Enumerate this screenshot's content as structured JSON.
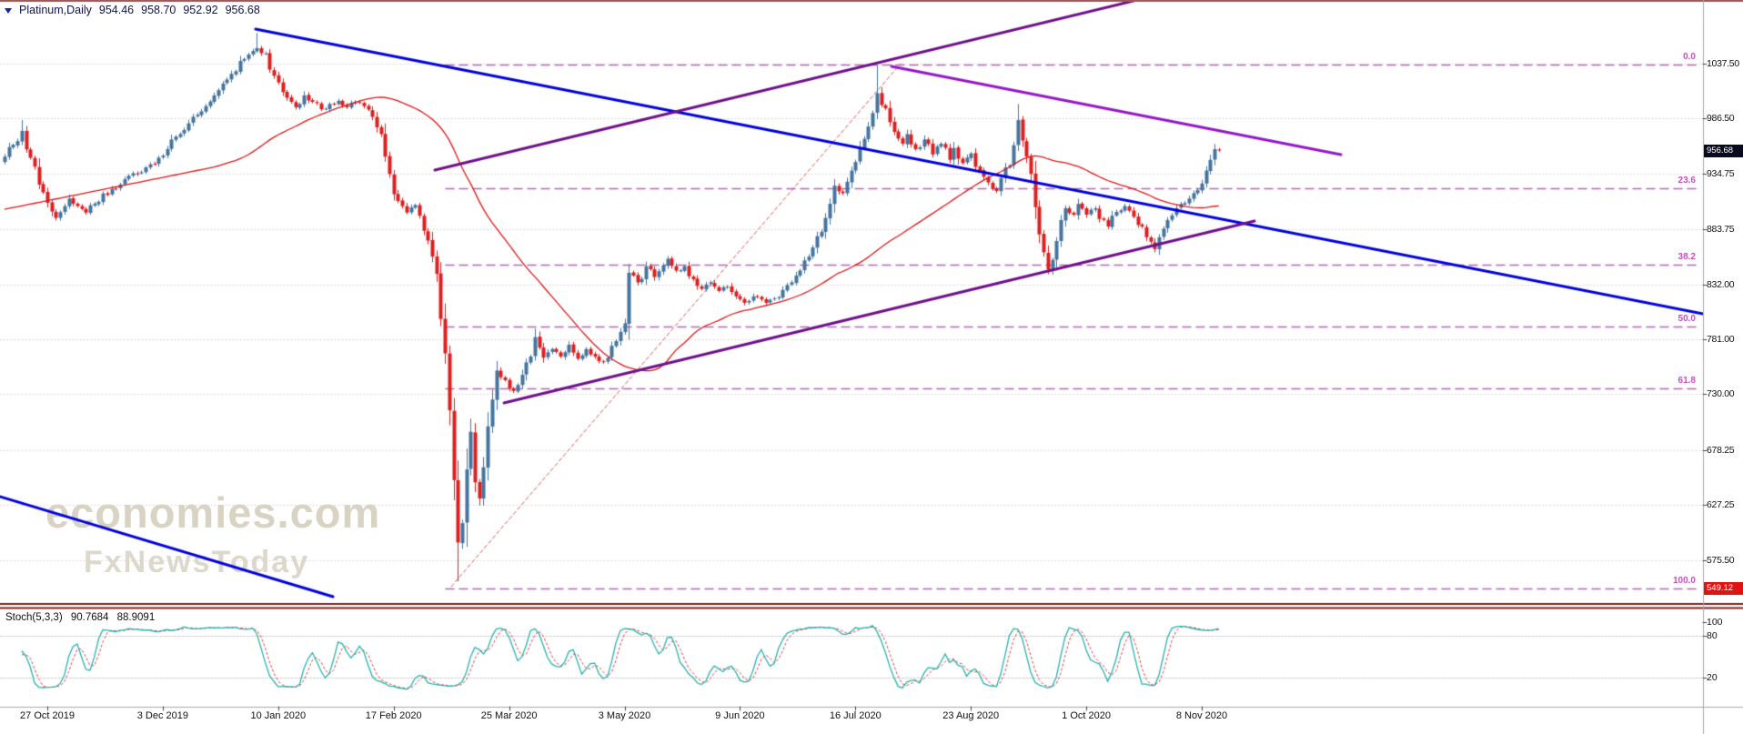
{
  "header": {
    "symbol": "Platinum,Daily",
    "open": "954.46",
    "high": "958.70",
    "low": "952.92",
    "close": "956.68"
  },
  "watermark": {
    "line1": "economies.com",
    "line2": "FxNewsToday"
  },
  "price_axis": {
    "labels": [
      "1037.50",
      "986.50",
      "934.75",
      "883.75",
      "832.00",
      "781.00",
      "730.00",
      "678.25",
      "627.25",
      "575.50"
    ],
    "current_price": "956.68",
    "fib_low_price": "549.12"
  },
  "time_axis": {
    "labels": [
      "27 Oct 2019",
      "3 Dec 2019",
      "10 Jan 2020",
      "17 Feb 2020",
      "25 Mar 2020",
      "3 May 2020",
      "9 Jun 2020",
      "16 Jul 2020",
      "23 Aug 2020",
      "1 Oct 2020",
      "8 Nov 2020"
    ]
  },
  "fibonacci": {
    "levels": [
      {
        "label": "0.0",
        "price": 1036.46
      },
      {
        "label": "23.6",
        "price": 921.45
      },
      {
        "label": "38.2",
        "price": 850.3
      },
      {
        "label": "50.0",
        "price": 792.79
      },
      {
        "label": "61.8",
        "price": 735.29
      },
      {
        "label": "100.0",
        "price": 549.12
      }
    ]
  },
  "stochastic_header": {
    "name": "Stoch(5,3,3)",
    "k_value": "90.7684",
    "d_value": "88.9091"
  },
  "stoch_axis": {
    "labels": [
      100,
      80,
      20
    ]
  },
  "colors": {
    "candle_up": "#45759f",
    "candle_down": "#df1f1f",
    "ma": "#e01515",
    "stoch_k": "#26b3ad",
    "stoch_d": "#df4040",
    "fib": "#c45ec4",
    "trend_blue": "#0202dd",
    "trend_purple": "#70108c",
    "trend_purple2": "#9418c8",
    "trend_red_dotted": "#e05555",
    "separator": "#7a2222",
    "grid": "#d4d4d4",
    "axis_line": "#a8a8a8",
    "badge_current_bg": "#0a0a1e",
    "badge_low_bg": "#e11212"
  },
  "chart_data": {
    "type": "candlestick",
    "symbol": "Platinum",
    "timeframe": "Daily",
    "last_ohlc": {
      "open": 954.46,
      "high": 958.7,
      "low": 952.92,
      "close": 956.68
    },
    "bars": 285,
    "price_range_visible": [
      549.12,
      1068
    ],
    "price_path": [
      [
        0,
        951
      ],
      [
        2,
        962
      ],
      [
        4,
        975
      ],
      [
        6,
        950
      ],
      [
        8,
        925
      ],
      [
        10,
        908
      ],
      [
        12,
        894
      ],
      [
        15,
        912
      ],
      [
        17,
        905
      ],
      [
        19,
        899
      ],
      [
        22,
        909
      ],
      [
        25,
        921
      ],
      [
        28,
        930
      ],
      [
        31,
        935
      ],
      [
        33,
        941
      ],
      [
        36,
        950
      ],
      [
        38,
        958
      ],
      [
        41,
        972
      ],
      [
        43,
        982
      ],
      [
        45,
        990
      ],
      [
        47,
        998
      ],
      [
        49,
        1008
      ],
      [
        51,
        1019
      ],
      [
        53,
        1028
      ],
      [
        55,
        1040
      ],
      [
        57,
        1046
      ],
      [
        59,
        1052
      ],
      [
        61,
        1047
      ],
      [
        62,
        1032
      ],
      [
        64,
        1020
      ],
      [
        65,
        1011
      ],
      [
        67,
        1002
      ],
      [
        68,
        997
      ],
      [
        70,
        1008
      ],
      [
        72,
        1002
      ],
      [
        74,
        995
      ],
      [
        76,
        1000
      ],
      [
        78,
        1003
      ],
      [
        80,
        997
      ],
      [
        82,
        1002
      ],
      [
        84,
        998
      ],
      [
        86,
        988
      ],
      [
        88,
        972
      ],
      [
        89,
        951
      ],
      [
        91,
        916
      ],
      [
        93,
        905
      ],
      [
        94,
        899
      ],
      [
        96,
        906
      ],
      [
        98,
        882
      ],
      [
        100,
        858
      ],
      [
        101,
        842
      ],
      [
        102,
        800
      ],
      [
        103,
        768
      ],
      [
        104,
        715
      ],
      [
        105,
        650
      ],
      [
        106,
        592
      ],
      [
        107,
        610
      ],
      [
        108,
        660
      ],
      [
        109,
        695
      ],
      [
        110,
        648
      ],
      [
        111,
        633
      ],
      [
        112,
        662
      ],
      [
        113,
        700
      ],
      [
        114,
        725
      ],
      [
        115,
        752
      ],
      [
        117,
        743
      ],
      [
        119,
        733
      ],
      [
        121,
        748
      ],
      [
        123,
        765
      ],
      [
        124,
        783
      ],
      [
        126,
        764
      ],
      [
        128,
        772
      ],
      [
        130,
        765
      ],
      [
        132,
        776
      ],
      [
        134,
        763
      ],
      [
        136,
        772
      ],
      [
        138,
        765
      ],
      [
        140,
        760
      ],
      [
        142,
        775
      ],
      [
        144,
        788
      ],
      [
        145,
        796
      ],
      [
        146,
        843
      ],
      [
        148,
        834
      ],
      [
        150,
        849
      ],
      [
        152,
        839
      ],
      [
        154,
        850
      ],
      [
        155,
        856
      ],
      [
        157,
        845
      ],
      [
        159,
        849
      ],
      [
        161,
        837
      ],
      [
        163,
        828
      ],
      [
        165,
        834
      ],
      [
        167,
        826
      ],
      [
        169,
        830
      ],
      [
        171,
        821
      ],
      [
        173,
        815
      ],
      [
        175,
        821
      ],
      [
        178,
        815
      ],
      [
        180,
        819
      ],
      [
        182,
        827
      ],
      [
        184,
        834
      ],
      [
        186,
        845
      ],
      [
        188,
        858
      ],
      [
        190,
        877
      ],
      [
        192,
        894
      ],
      [
        194,
        924
      ],
      [
        196,
        917
      ],
      [
        198,
        938
      ],
      [
        200,
        959
      ],
      [
        202,
        979
      ],
      [
        204,
        1010
      ],
      [
        206,
        996
      ],
      [
        208,
        974
      ],
      [
        210,
        963
      ],
      [
        211,
        972
      ],
      [
        213,
        958
      ],
      [
        215,
        967
      ],
      [
        217,
        953
      ],
      [
        219,
        963
      ],
      [
        221,
        948
      ],
      [
        222,
        959
      ],
      [
        224,
        945
      ],
      [
        226,
        954
      ],
      [
        228,
        938
      ],
      [
        230,
        927
      ],
      [
        232,
        919
      ],
      [
        233,
        931
      ],
      [
        235,
        943
      ],
      [
        237,
        985
      ],
      [
        238,
        966
      ],
      [
        240,
        935
      ],
      [
        241,
        904
      ],
      [
        243,
        862
      ],
      [
        244,
        846
      ],
      [
        245,
        855
      ],
      [
        247,
        892
      ],
      [
        248,
        903
      ],
      [
        250,
        897
      ],
      [
        251,
        907
      ],
      [
        253,
        897
      ],
      [
        255,
        903
      ],
      [
        256,
        893
      ],
      [
        258,
        886
      ],
      [
        259,
        896
      ],
      [
        261,
        901
      ],
      [
        262,
        905
      ],
      [
        264,
        895
      ],
      [
        266,
        886
      ],
      [
        267,
        876
      ],
      [
        269,
        865
      ],
      [
        270,
        876
      ],
      [
        272,
        892
      ],
      [
        274,
        903
      ],
      [
        275,
        907
      ],
      [
        277,
        912
      ],
      [
        278,
        917
      ],
      [
        280,
        926
      ],
      [
        281,
        938
      ],
      [
        282,
        948
      ],
      [
        283,
        958
      ],
      [
        284,
        956.68
      ]
    ],
    "spikes": [
      {
        "bar": 4,
        "high": 985
      },
      {
        "bar": 59,
        "high": 1066
      },
      {
        "bar": 106,
        "low": 556
      },
      {
        "bar": 204,
        "high": 1036
      },
      {
        "bar": 237,
        "high": 1000
      }
    ],
    "ma": {
      "kind": "sma",
      "period": 50
    },
    "stochastic": {
      "k": 5,
      "slowing": 3,
      "d": 3,
      "k_last": 90.7684,
      "d_last": 88.9091,
      "levels": [
        80,
        20
      ]
    },
    "annotations": {
      "trendlines": [
        {
          "name": "blue-falling-resistance",
          "style": "solid",
          "width": 3,
          "colorKey": "trend_blue",
          "from": [
            281,
            32
          ],
          "to": [
            1872,
            345
          ]
        },
        {
          "name": "blue-lower-left-segment",
          "style": "solid",
          "width": 3,
          "colorKey": "trend_blue",
          "from": [
            -20,
            540
          ],
          "to": [
            366,
            656
          ]
        },
        {
          "name": "purple-rising-channel-upper",
          "style": "solid",
          "width": 3,
          "colorKey": "trend_purple",
          "from": [
            478,
            187
          ],
          "to": [
            1250,
            0
          ]
        },
        {
          "name": "purple-rising-channel-lower",
          "style": "solid",
          "width": 3,
          "colorKey": "trend_purple",
          "from": [
            554,
            443
          ],
          "to": [
            1379,
            243
          ]
        },
        {
          "name": "purple-falling-line",
          "style": "solid",
          "width": 3,
          "colorKey": "trend_purple2",
          "from": [
            980,
            73
          ],
          "to": [
            1474,
            170
          ]
        },
        {
          "name": "red-rising-dotted",
          "style": "dashed",
          "width": 1,
          "colorKey": "trend_red_dotted",
          "from": [
            496,
            645
          ],
          "to": [
            990,
            70
          ]
        }
      ]
    }
  }
}
